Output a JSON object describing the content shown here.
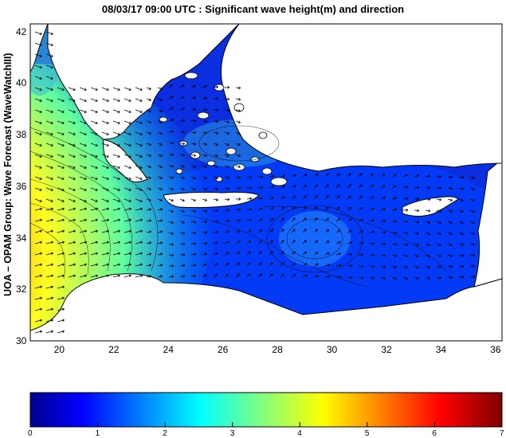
{
  "title": "08/03/17 09:00 UTC : Significant wave height(m) and direction",
  "ylabel": "UOA – OPAM Group: Wave Forecast (WaveWatchIII)",
  "map": {
    "lon_range": [
      18.9,
      36.2
    ],
    "lat_range": [
      30.0,
      42.3
    ],
    "lon_ticks": [
      "20",
      "22",
      "24",
      "26",
      "28",
      "30",
      "32",
      "34",
      "36"
    ],
    "lat_ticks": [
      "30",
      "32",
      "34",
      "36",
      "38",
      "40",
      "42"
    ]
  },
  "colorbar": {
    "range": [
      0,
      7
    ],
    "tick_labels": [
      "0",
      "1",
      "2",
      "3",
      "4",
      "5",
      "6",
      "7"
    ],
    "colormap": "jet"
  },
  "colors": {
    "land": "#ffffff",
    "coastline": "#000000",
    "arrow": "#000000"
  }
}
